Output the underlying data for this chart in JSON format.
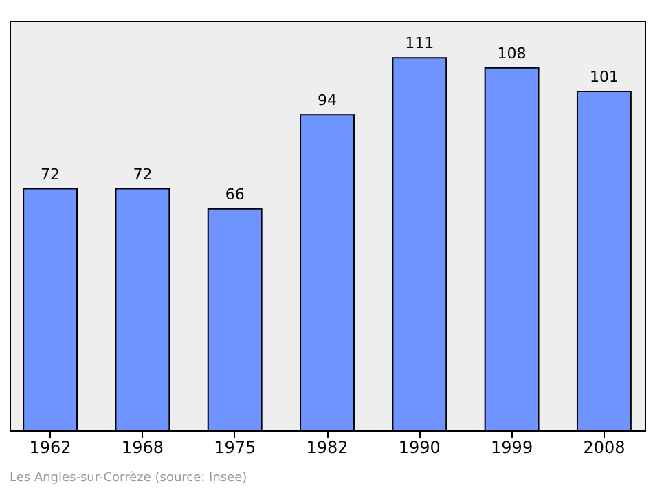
{
  "chart_data": {
    "type": "bar",
    "categories": [
      "1962",
      "1968",
      "1975",
      "1982",
      "1990",
      "1999",
      "2008"
    ],
    "values": [
      72,
      72,
      66,
      94,
      111,
      108,
      101
    ],
    "color": "#7094ff",
    "data_labels": true,
    "tick_labels": "x",
    "annotations": [
      "Les Angles-sur-Corrèze    (source: Insee)"
    ]
  }
}
